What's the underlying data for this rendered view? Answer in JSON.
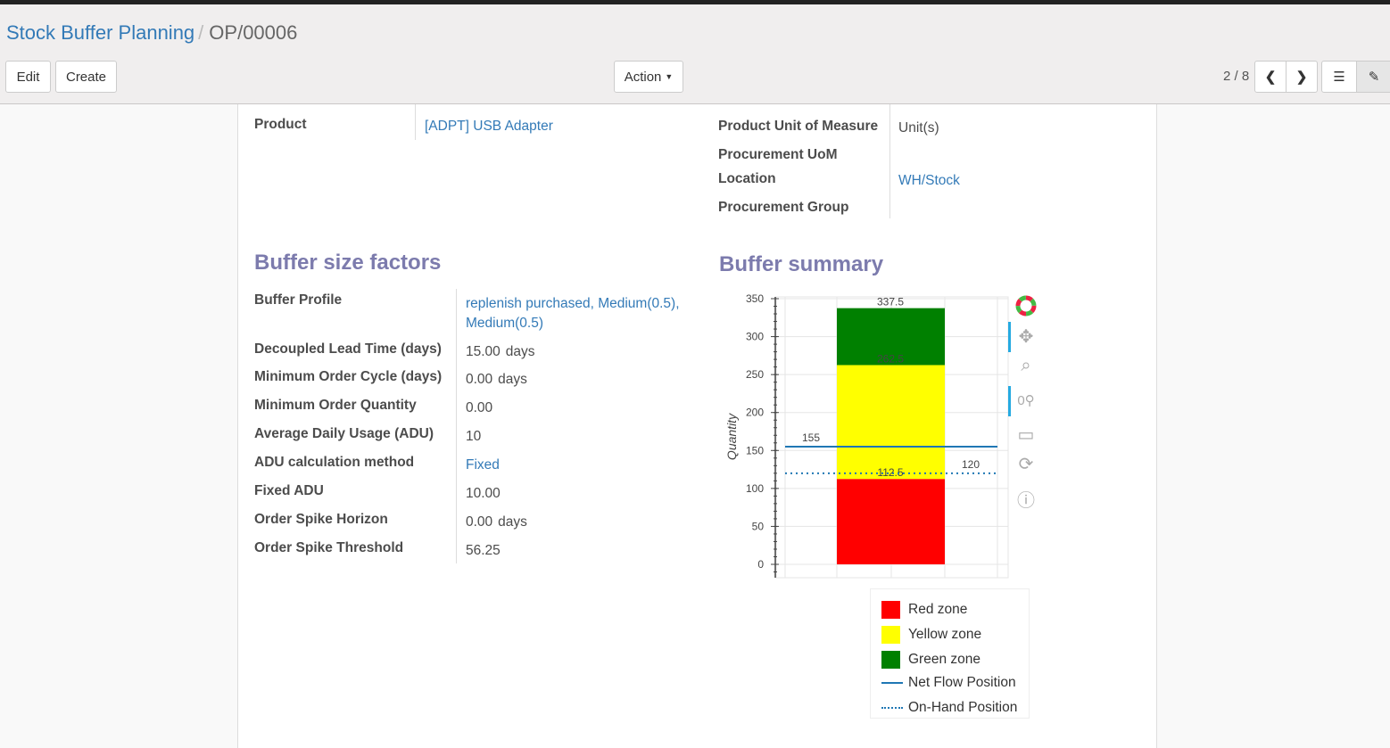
{
  "breadcrumb": {
    "parent": "Stock Buffer Planning",
    "current": "OP/00006"
  },
  "buttons": {
    "edit": "Edit",
    "create": "Create",
    "action": "Action"
  },
  "pager": {
    "text": "2 / 8"
  },
  "fields_top": {
    "product_label": "Product",
    "product_value": "[ADPT] USB Adapter",
    "uom_label": "Product Unit of Measure",
    "uom_value": "Unit(s)",
    "proc_uom_label": "Procurement UoM",
    "location_label": "Location",
    "location_value": "WH/Stock",
    "proc_group_label": "Procurement Group"
  },
  "buffer_factors": {
    "title": "Buffer size factors",
    "rows": [
      {
        "label": "Buffer Profile",
        "value": "replenish purchased, Medium(0.5), Medium(0.5)",
        "link": true
      },
      {
        "label": "Decoupled Lead Time (days)",
        "value": "15.00",
        "unit": "days"
      },
      {
        "label": "Minimum Order Cycle (days)",
        "value": "0.00",
        "unit": "days"
      },
      {
        "label": "Minimum Order Quantity",
        "value": "0.00"
      },
      {
        "label": "Average Daily Usage (ADU)",
        "value": "10"
      },
      {
        "label": "ADU calculation method",
        "value": "Fixed",
        "link": true
      },
      {
        "label": "Fixed ADU",
        "value": "10.00"
      },
      {
        "label": "Order Spike Horizon",
        "value": "0.00",
        "unit": "days"
      },
      {
        "label": "Order Spike Threshold",
        "value": "56.25"
      }
    ]
  },
  "summary": {
    "title": "Buffer summary"
  },
  "chart_data": {
    "type": "bar",
    "ylabel": "Quantity",
    "ylim": [
      0,
      350
    ],
    "yticks": [
      0,
      50,
      100,
      150,
      200,
      250,
      300,
      350
    ],
    "stacked_segments": [
      {
        "name": "Red zone",
        "from": 0,
        "to": 112.5,
        "color": "#ff0000"
      },
      {
        "name": "Yellow zone",
        "from": 112.5,
        "to": 262.5,
        "color": "#ffff00"
      },
      {
        "name": "Green zone",
        "from": 262.5,
        "to": 337.5,
        "color": "#008000"
      }
    ],
    "bar_labels": [
      "112.5",
      "262.5",
      "337.5"
    ],
    "lines": [
      {
        "name": "Net Flow Position",
        "value": 155,
        "label": "155",
        "style": "solid",
        "color": "#1f77b4"
      },
      {
        "name": "On-Hand Position",
        "value": 120,
        "label": "120",
        "style": "dotted",
        "color": "#1f77b4"
      }
    ],
    "grid": true,
    "legend": "bottom-right"
  },
  "chart_tools": [
    "bokeh-logo-icon",
    "pan-icon",
    "box-zoom-icon",
    "wheel-zoom-icon",
    "save-icon",
    "reset-icon",
    "help-icon"
  ]
}
